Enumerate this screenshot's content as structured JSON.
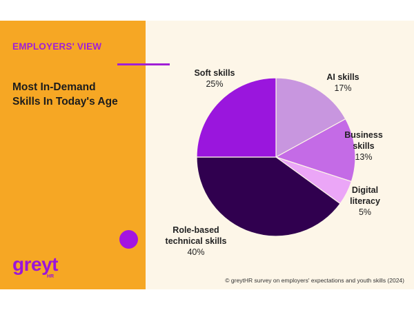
{
  "kicker": "EMPLOYERS' VIEW",
  "title_lines": [
    "Most In-Demand",
    "Skills In Today's Age"
  ],
  "logo": {
    "text": "greyt",
    "sub": "HR"
  },
  "credit": "© greytHR survey on employers' expectations and youth skills (2024)",
  "colors": {
    "panel": "#f6a724",
    "accent": "#a01fd6",
    "background": "#fdf6e8"
  },
  "chart_data": {
    "type": "pie",
    "title": "",
    "slices": [
      {
        "name": "AI skills",
        "value": 17,
        "label_lines": [
          "AI skills"
        ],
        "value_label": "17%",
        "color": "#c896df"
      },
      {
        "name": "Business skills",
        "value": 13,
        "label_lines": [
          "Business",
          "skills"
        ],
        "value_label": "13%",
        "color": "#c46be6"
      },
      {
        "name": "Digital literacy",
        "value": 5,
        "label_lines": [
          "Digital",
          "literacy"
        ],
        "value_label": "5%",
        "color": "#eba6f7"
      },
      {
        "name": "Role-based technical skills",
        "value": 40,
        "label_lines": [
          "Role-based",
          "technical skills"
        ],
        "value_label": "40%",
        "color": "#30004f"
      },
      {
        "name": "Soft skills",
        "value": 25,
        "label_lines": [
          "Soft skills"
        ],
        "value_label": "25%",
        "color": "#9a16dd"
      }
    ]
  }
}
